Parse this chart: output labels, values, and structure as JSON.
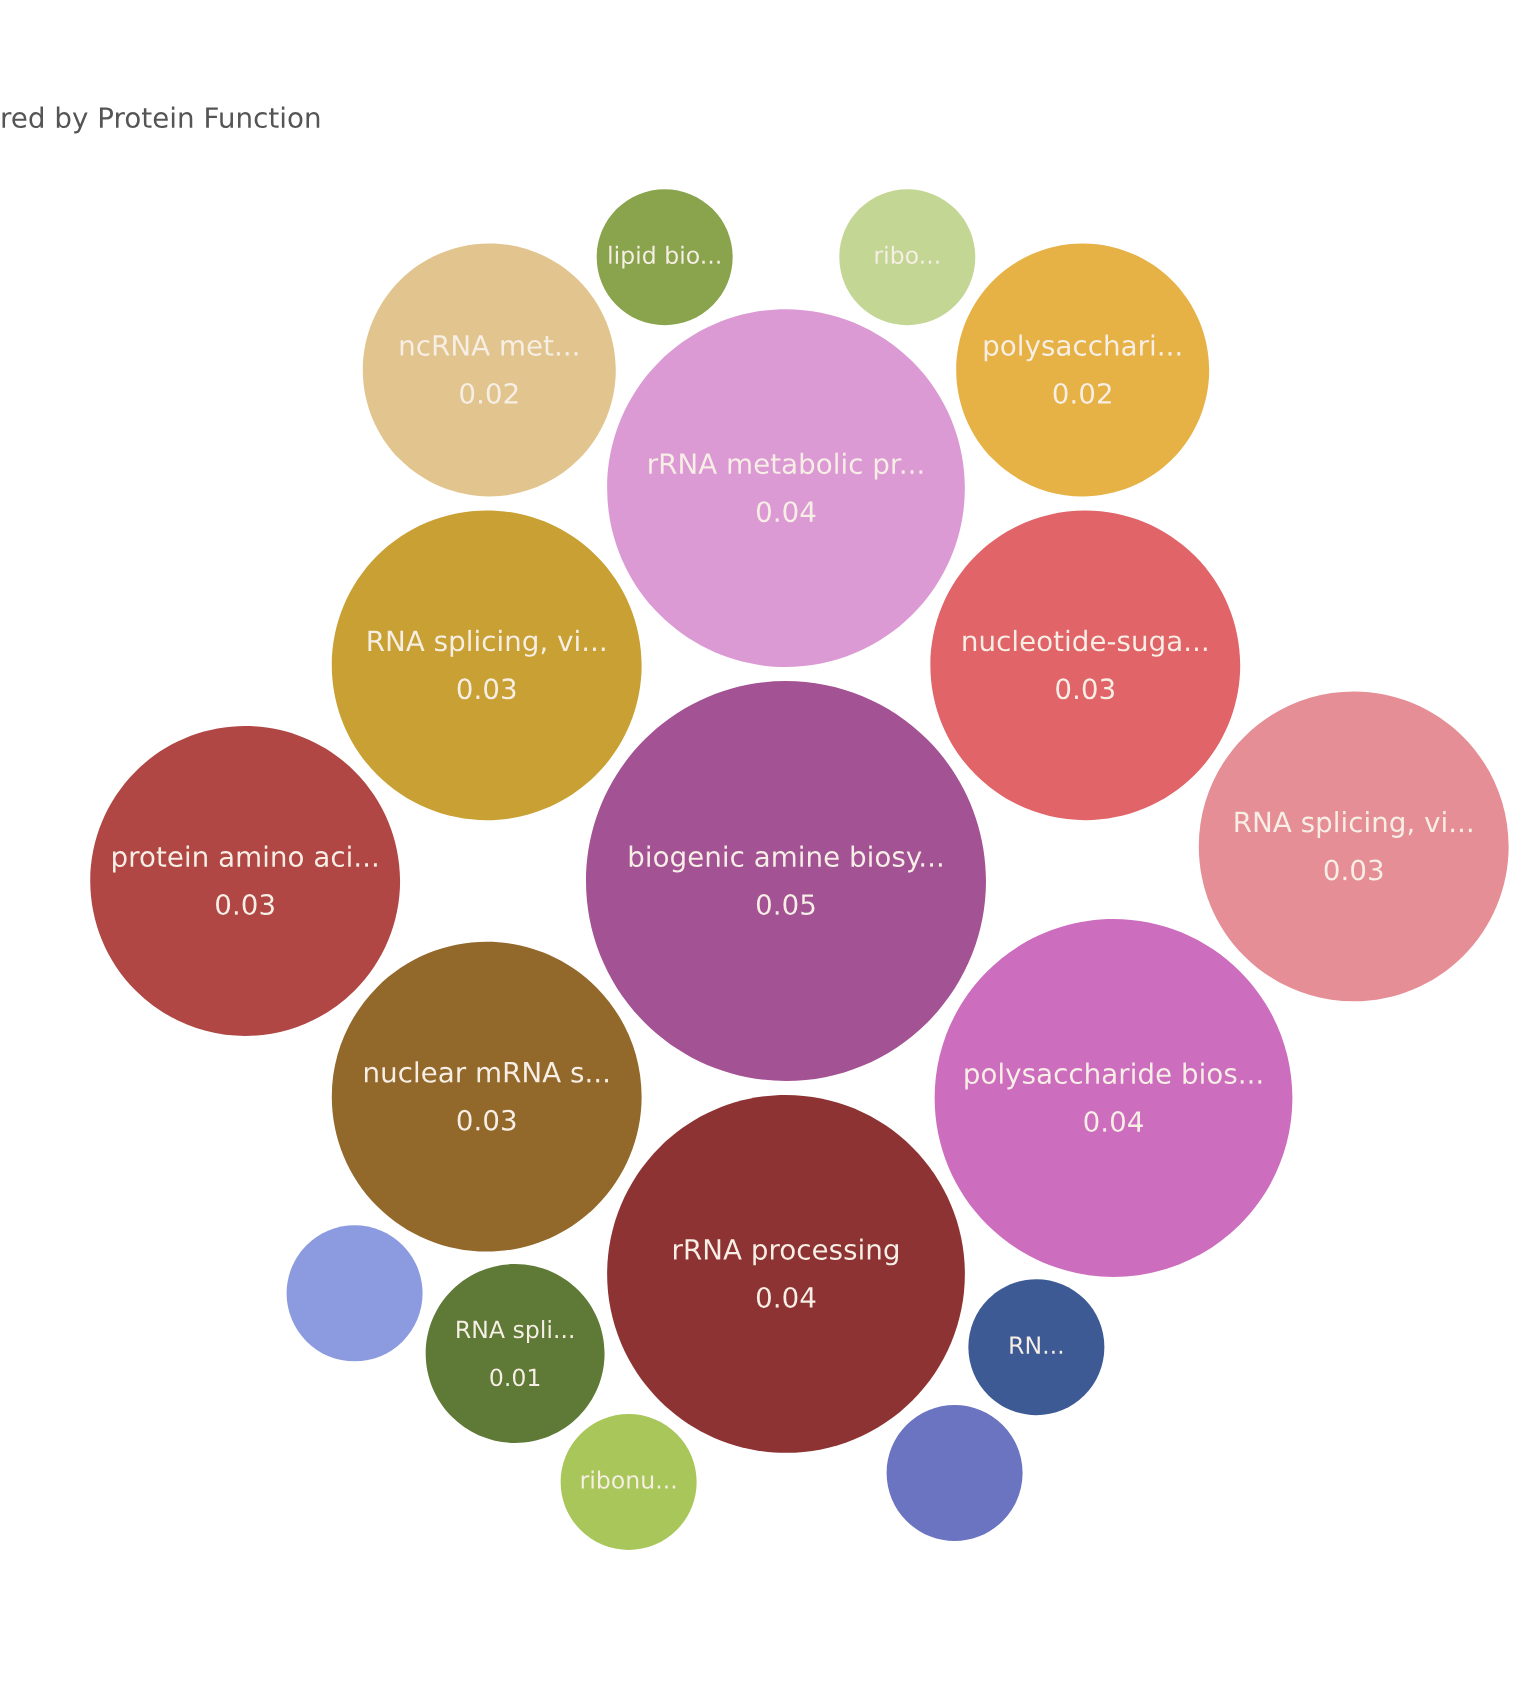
{
  "chart_data": {
    "type": "other",
    "title": "red by Protein Function",
    "categories": [
      "RNA splicing, vi...",
      "nuclear mRNA s...",
      "rRNA metabolic pr...",
      "RN...",
      null,
      "biogenic amine biosy...",
      "nucleotide-suga...",
      "ribonu...",
      "rRNA processing",
      null,
      "protein amino aci...",
      "RNA spli...",
      "polysaccharide bios...",
      "polysacchari...",
      "ribo...",
      "lipid bio...",
      "RNA splicing, vi...",
      "ncRNA met..."
    ],
    "values": [
      0.03,
      0.03,
      0.04,
      null,
      null,
      0.05,
      0.03,
      null,
      0.04,
      null,
      0.03,
      0.01,
      0.04,
      0.02,
      null,
      null,
      0.03,
      0.02
    ],
    "colors": [
      "#c9a033",
      "#93692b",
      "#dc9ad4",
      "#3d5a94",
      "#6a74c0",
      "#a35294",
      "#e06468",
      "#a9c65a",
      "#8e3333",
      "#8c9be0",
      "#b04744",
      "#5e7a36",
      "#cc6dbe",
      "#e6b246",
      "#c3d694",
      "#8aa44d",
      "#e58e96",
      "#e2c58e"
    ],
    "data_labels": true
  }
}
